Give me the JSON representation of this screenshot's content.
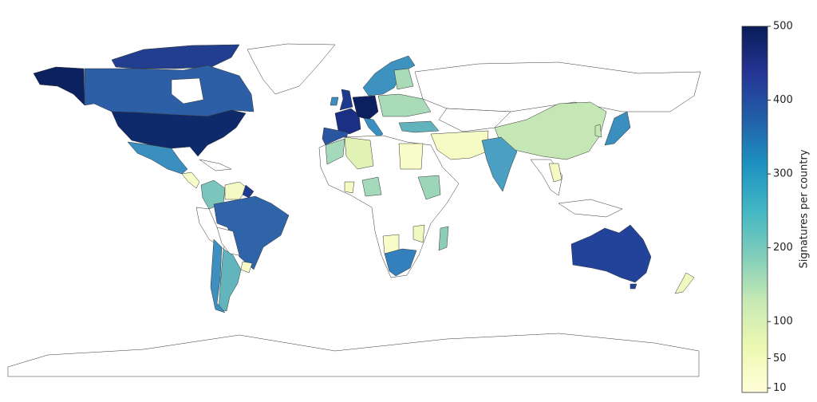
{
  "colorbar": {
    "label": "Signatures per country",
    "lim": [
      4,
      500
    ],
    "ticks": [
      10,
      50,
      100,
      200,
      300,
      400,
      500
    ],
    "colormap": "YlGnBu"
  }
}
